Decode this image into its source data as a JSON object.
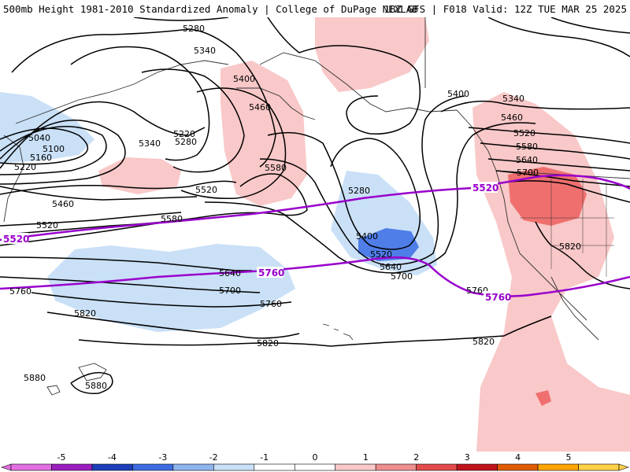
{
  "header": {
    "left_title": "500mb Height 1981-2010 Standardized Anomaly | College of DuPage NEXLAB",
    "right_title": "18Z GFS | F018 Valid: 12Z TUE MAR 25 2025"
  },
  "colors": {
    "pos1": "#f9c8c8",
    "pos2": "#ef6f6f",
    "neg1": "#c9e0f7",
    "neg2": "#4f7ee8",
    "coast": "#333333",
    "contour": "#000000",
    "highlight": "#9900cc"
  },
  "contour_labels": {
    "h5280a": "5280",
    "h5340a": "5340",
    "h5400a": "5400",
    "h5460a": "5460",
    "h5220a": "5220",
    "h5280b": "5280",
    "h5340b": "5340",
    "h5040": "5040",
    "h5100": "5100",
    "h5160": "5160",
    "h5220b": "5220",
    "h5520a": "5520",
    "h5460b": "5460",
    "h5580a": "5580",
    "h5580b": "5580",
    "h5520b": "5520",
    "h5640a": "5640",
    "h5700a": "5700",
    "h5760a": "5760",
    "h5760b": "5760",
    "h5820a": "5820",
    "h5820b": "5820",
    "h5880a": "5880",
    "h5880b": "5880",
    "h5400b": "5400",
    "h5340c": "5340",
    "h5460c": "5460",
    "h5520c": "5520",
    "h5580c": "5580",
    "h5640b": "5640",
    "h5700b": "5700",
    "h5280c": "5280",
    "h5400c": "5400",
    "h5520d": "5520",
    "h5640c": "5640",
    "h5700c": "5700",
    "h5820c": "5820",
    "h5820d": "5820",
    "h5760c": "5760",
    "h5760d": "5760"
  },
  "highlight_labels": {
    "p5520a": "5520",
    "p5520b": "5520",
    "p5760a": "5760",
    "p5760b": "5760"
  },
  "colorbar": {
    "ticks": [
      "-5",
      "-4",
      "-3",
      "-2",
      "-1",
      "0",
      "1",
      "2",
      "3",
      "4",
      "5"
    ],
    "colors": [
      "#e36fe3",
      "#9b1fc0",
      "#1b3fb8",
      "#3d6be0",
      "#8fb5ef",
      "#c9e0f7",
      "#ffffff",
      "#ffffff",
      "#f9c8c8",
      "#ef8e8e",
      "#e24b4b",
      "#c0131c",
      "#e05c00",
      "#ffa500",
      "#ffd04a"
    ]
  }
}
